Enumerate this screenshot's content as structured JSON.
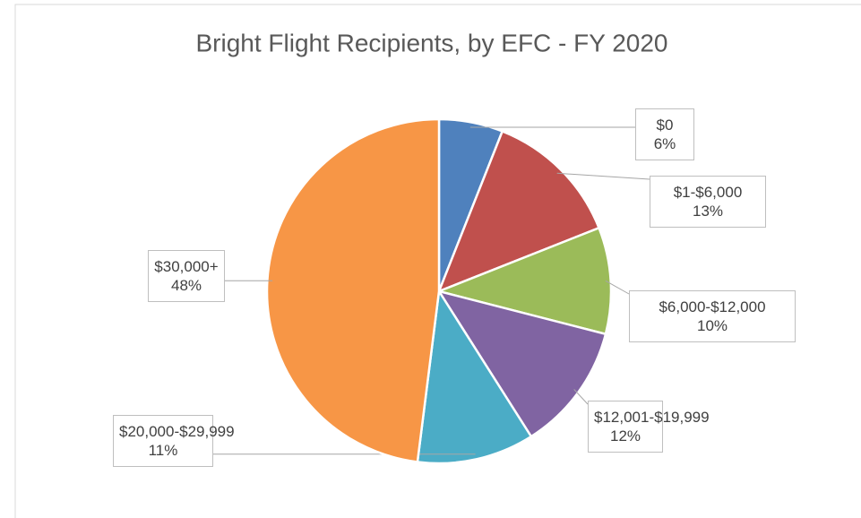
{
  "chart_data": {
    "type": "pie",
    "title": "Bright Flight Recipients, by EFC - FY 2020",
    "categories": [
      "$0",
      "$1-$6,000",
      "$6,000-$12,000",
      "$12,001-$19,999",
      "$20,000-$29,999",
      "$30,000+"
    ],
    "values": [
      6,
      13,
      10,
      12,
      11,
      48
    ],
    "value_labels": [
      "6%",
      "13%",
      "10%",
      "12%",
      "11%",
      "48%"
    ],
    "colors": [
      "#4f81bd",
      "#c0504d",
      "#9bbb59",
      "#8064a2",
      "#4bacc6",
      "#f79646"
    ]
  }
}
